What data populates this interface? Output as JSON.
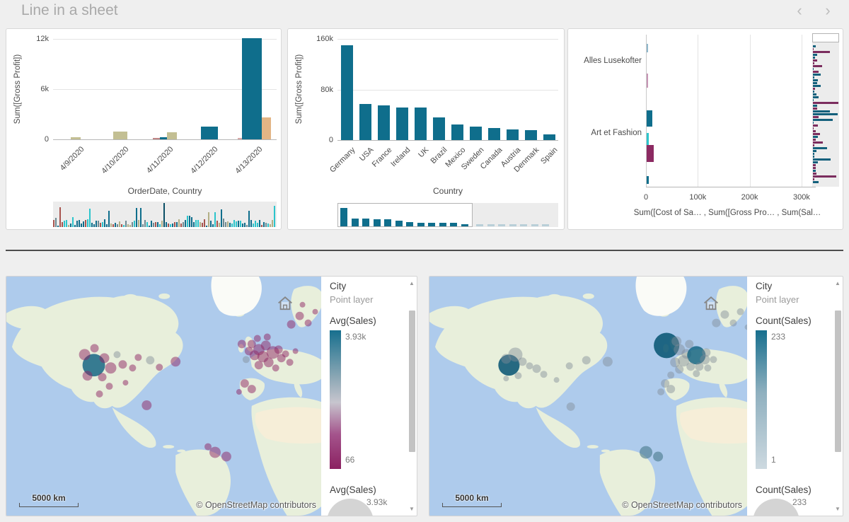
{
  "page": {
    "title": "Line in a sheet"
  },
  "nav": {
    "prev": "‹",
    "next": "›"
  },
  "chart_data": [
    {
      "type": "bar",
      "ylabel": "Sum([Gross Profit])",
      "xlabel": "OrderDate, Country",
      "yticks": [
        "12k",
        "6k",
        "0"
      ],
      "ylim": [
        0,
        12000
      ],
      "categories": [
        "4/9/2020",
        "4/10/2020",
        "4/11/2020",
        "4/12/2020",
        "4/13/2020"
      ],
      "groups": [
        {
          "bars": [
            {
              "v": 250,
              "w": 14,
              "c": "#c3bf93"
            }
          ]
        },
        {
          "bars": [
            {
              "v": 900,
              "w": 20,
              "c": "#c3bf93"
            }
          ]
        },
        {
          "bars": [
            {
              "v": 180,
              "w": 10,
              "c": "#c08585"
            },
            {
              "v": 280,
              "w": 10,
              "c": "#0f6e8c"
            },
            {
              "v": 850,
              "w": 14,
              "c": "#c3bf93"
            }
          ]
        },
        {
          "bars": [
            {
              "v": 1500,
              "w": 24,
              "c": "#0f6e8c"
            }
          ]
        },
        {
          "bars": [
            {
              "v": 150,
              "w": 6,
              "c": "#d8a8a8"
            },
            {
              "v": 12100,
              "w": 28,
              "c": "#0f6e8c"
            },
            {
              "v": 2600,
              "w": 13,
              "c": "#e2b585"
            }
          ]
        }
      ],
      "has_minimap": true
    },
    {
      "type": "bar",
      "ylabel": "Sum([Gross Profit])",
      "xlabel": "Country",
      "yticks": [
        "160k",
        "80k",
        "0"
      ],
      "ylim": [
        0,
        160000
      ],
      "categories": [
        "Germany",
        "USA",
        "France",
        "Ireland",
        "UK",
        "Brazil",
        "Mexico",
        "Sweden",
        "Canada",
        "Austria",
        "Denmark",
        "Spain"
      ],
      "values": [
        150000,
        57000,
        55000,
        52000,
        51000,
        36000,
        25000,
        21000,
        19000,
        17000,
        16000,
        9000
      ],
      "bar_color": "#0f6e8c",
      "has_minimap": true
    },
    {
      "type": "bar-horizontal",
      "axis_title": "Sum([Cost of Sa… , Sum([Gross Pro… , Sum(Sal…",
      "xticks": [
        "0",
        "100k",
        "200k",
        "300k"
      ],
      "xlim": [
        0,
        320000
      ],
      "row_labels": [
        {
          "text": "Alles Lusekofter",
          "y": 0.18
        },
        {
          "text": "Art et Fashion",
          "y": 0.655
        }
      ],
      "bars": [
        {
          "y": 0.09,
          "v": 2000,
          "h": 12,
          "c": "#8fb8cc"
        },
        {
          "y": 0.3,
          "v": 1500,
          "h": 20,
          "c": "#c795b5"
        },
        {
          "y": 0.55,
          "v": 11000,
          "h": 23,
          "c": "#0f6e8c"
        },
        {
          "y": 0.69,
          "v": 4000,
          "h": 18,
          "c": "#2cc5cc"
        },
        {
          "y": 0.78,
          "v": 13000,
          "h": 24,
          "c": "#8c2a62"
        },
        {
          "y": 0.955,
          "v": 3500,
          "h": 11,
          "c": "#0f6e8c"
        }
      ],
      "has_minimap": true
    },
    {
      "type": "map",
      "legend": {
        "dimension": "City",
        "layer": "Point layer",
        "measure": "Avg(Sales)",
        "max": "3.93k",
        "min": "66",
        "size_measure": "Avg(Sales)",
        "size_max": "3.93k",
        "gradient": [
          "#176f8e 0%",
          "#8fa9b6 35%",
          "#c7c5ce 52%",
          "#a4548c 75%",
          "#8b2161 100%"
        ]
      },
      "scale": "5000 km",
      "attribution": "© OpenStreetMap contributors",
      "points": [
        [
          124,
          126,
          16,
          "teal"
        ],
        [
          111,
          111,
          8,
          "m"
        ],
        [
          125,
          102,
          6,
          "m"
        ],
        [
          139,
          116,
          7,
          "m"
        ],
        [
          148,
          130,
          8,
          "m"
        ],
        [
          136,
          143,
          6,
          "m"
        ],
        [
          115,
          141,
          7,
          "m"
        ],
        [
          157,
          111,
          5,
          "g"
        ],
        [
          165,
          125,
          6,
          "m"
        ],
        [
          179,
          130,
          5,
          "m"
        ],
        [
          146,
          156,
          5,
          "m"
        ],
        [
          132,
          167,
          5,
          "m"
        ],
        [
          169,
          151,
          4,
          "m"
        ],
        [
          204,
          119,
          6,
          "g"
        ],
        [
          217,
          129,
          5,
          "m"
        ],
        [
          187,
          115,
          5,
          "m"
        ],
        [
          240,
          121,
          7,
          "m"
        ],
        [
          199,
          183,
          7,
          "m"
        ],
        [
          348,
          96,
          6,
          "m"
        ],
        [
          358,
          104,
          8,
          "m"
        ],
        [
          368,
          98,
          7,
          "m"
        ],
        [
          378,
          108,
          9,
          "m"
        ],
        [
          364,
          114,
          8,
          "m"
        ],
        [
          352,
          112,
          7,
          "m"
        ],
        [
          372,
          122,
          7,
          "m"
        ],
        [
          386,
          104,
          6,
          "m"
        ],
        [
          390,
          116,
          6,
          "m"
        ],
        [
          358,
          126,
          6,
          "m"
        ],
        [
          344,
          106,
          6,
          "m"
        ],
        [
          382,
          130,
          5,
          "m"
        ],
        [
          396,
          110,
          5,
          "m"
        ],
        [
          402,
          122,
          5,
          "m"
        ],
        [
          410,
          106,
          4,
          "m"
        ],
        [
          356,
          88,
          5,
          "m"
        ],
        [
          370,
          86,
          5,
          "m"
        ],
        [
          340,
          118,
          5,
          "g"
        ],
        [
          334,
          96,
          6,
          "m"
        ],
        [
          404,
          68,
          6,
          "m"
        ],
        [
          416,
          56,
          6,
          "m"
        ],
        [
          428,
          66,
          5,
          "m"
        ],
        [
          438,
          50,
          4,
          "m"
        ],
        [
          420,
          40,
          4,
          "m"
        ],
        [
          338,
          152,
          6,
          "m"
        ],
        [
          348,
          160,
          6,
          "m"
        ],
        [
          330,
          164,
          4,
          "m"
        ],
        [
          296,
          250,
          8,
          "m"
        ],
        [
          312,
          256,
          7,
          "m"
        ],
        [
          286,
          242,
          5,
          "m"
        ]
      ]
    },
    {
      "type": "map",
      "legend": {
        "dimension": "City",
        "layer": "Point layer",
        "measure": "Count(Sales)",
        "max": "233",
        "min": "1",
        "size_measure": "Count(Sales)",
        "size_max": "233",
        "gradient": [
          "#176f8e 0%",
          "#8fb0bf 45%",
          "#cdd9e0 100%"
        ]
      },
      "scale": "5000 km",
      "attribution": "© OpenStreetMap contributors",
      "points": [
        [
          112,
          126,
          15,
          "teal2"
        ],
        [
          121,
          111,
          10,
          "g"
        ],
        [
          108,
          117,
          7,
          "g"
        ],
        [
          131,
          121,
          6,
          "g"
        ],
        [
          141,
          127,
          5,
          "g"
        ],
        [
          151,
          131,
          6,
          "g"
        ],
        [
          125,
          141,
          5,
          "g"
        ],
        [
          108,
          145,
          4,
          "g"
        ],
        [
          161,
          139,
          5,
          "g"
        ],
        [
          179,
          147,
          4,
          "g"
        ],
        [
          197,
          127,
          5,
          "g"
        ],
        [
          221,
          119,
          6,
          "g"
        ],
        [
          251,
          121,
          7,
          "g"
        ],
        [
          199,
          185,
          6,
          "g"
        ],
        [
          334,
          98,
          18,
          "teal2"
        ],
        [
          352,
          104,
          8,
          "g"
        ],
        [
          362,
          110,
          7,
          "g"
        ],
        [
          376,
          112,
          13,
          "teal"
        ],
        [
          388,
          118,
          7,
          "g"
        ],
        [
          358,
          120,
          8,
          "g"
        ],
        [
          346,
          122,
          7,
          "g"
        ],
        [
          368,
          128,
          6,
          "g"
        ],
        [
          380,
          128,
          6,
          "g"
        ],
        [
          390,
          108,
          6,
          "g"
        ],
        [
          352,
          132,
          6,
          "g"
        ],
        [
          340,
          140,
          5,
          "g"
        ],
        [
          376,
          138,
          5,
          "g"
        ],
        [
          392,
          130,
          5,
          "g"
        ],
        [
          400,
          118,
          5,
          "g"
        ],
        [
          348,
          92,
          7,
          "g"
        ],
        [
          366,
          96,
          6,
          "g"
        ],
        [
          404,
          66,
          6,
          "g"
        ],
        [
          416,
          54,
          6,
          "g"
        ],
        [
          428,
          66,
          5,
          "g"
        ],
        [
          438,
          50,
          5,
          "g"
        ],
        [
          448,
          72,
          4,
          "g"
        ],
        [
          456,
          58,
          4,
          "g"
        ],
        [
          332,
          152,
          6,
          "g"
        ],
        [
          340,
          160,
          6,
          "g"
        ],
        [
          326,
          164,
          5,
          "g"
        ],
        [
          305,
          250,
          9,
          "tg"
        ],
        [
          322,
          256,
          7,
          "tg"
        ]
      ]
    }
  ],
  "point_colors": {
    "teal": "rgba(16,98,128,0.82)",
    "teal2": "rgba(10,86,116,0.88)",
    "m": "rgba(141,38,100,0.5)",
    "g": "rgba(128,140,150,0.45)",
    "tg": "rgba(70,120,138,0.6)"
  },
  "map_colors": {
    "ocean": "#aecbec",
    "land": "#e8efdb",
    "desert": "#f6eed8",
    "ice": "#fafbf7"
  }
}
